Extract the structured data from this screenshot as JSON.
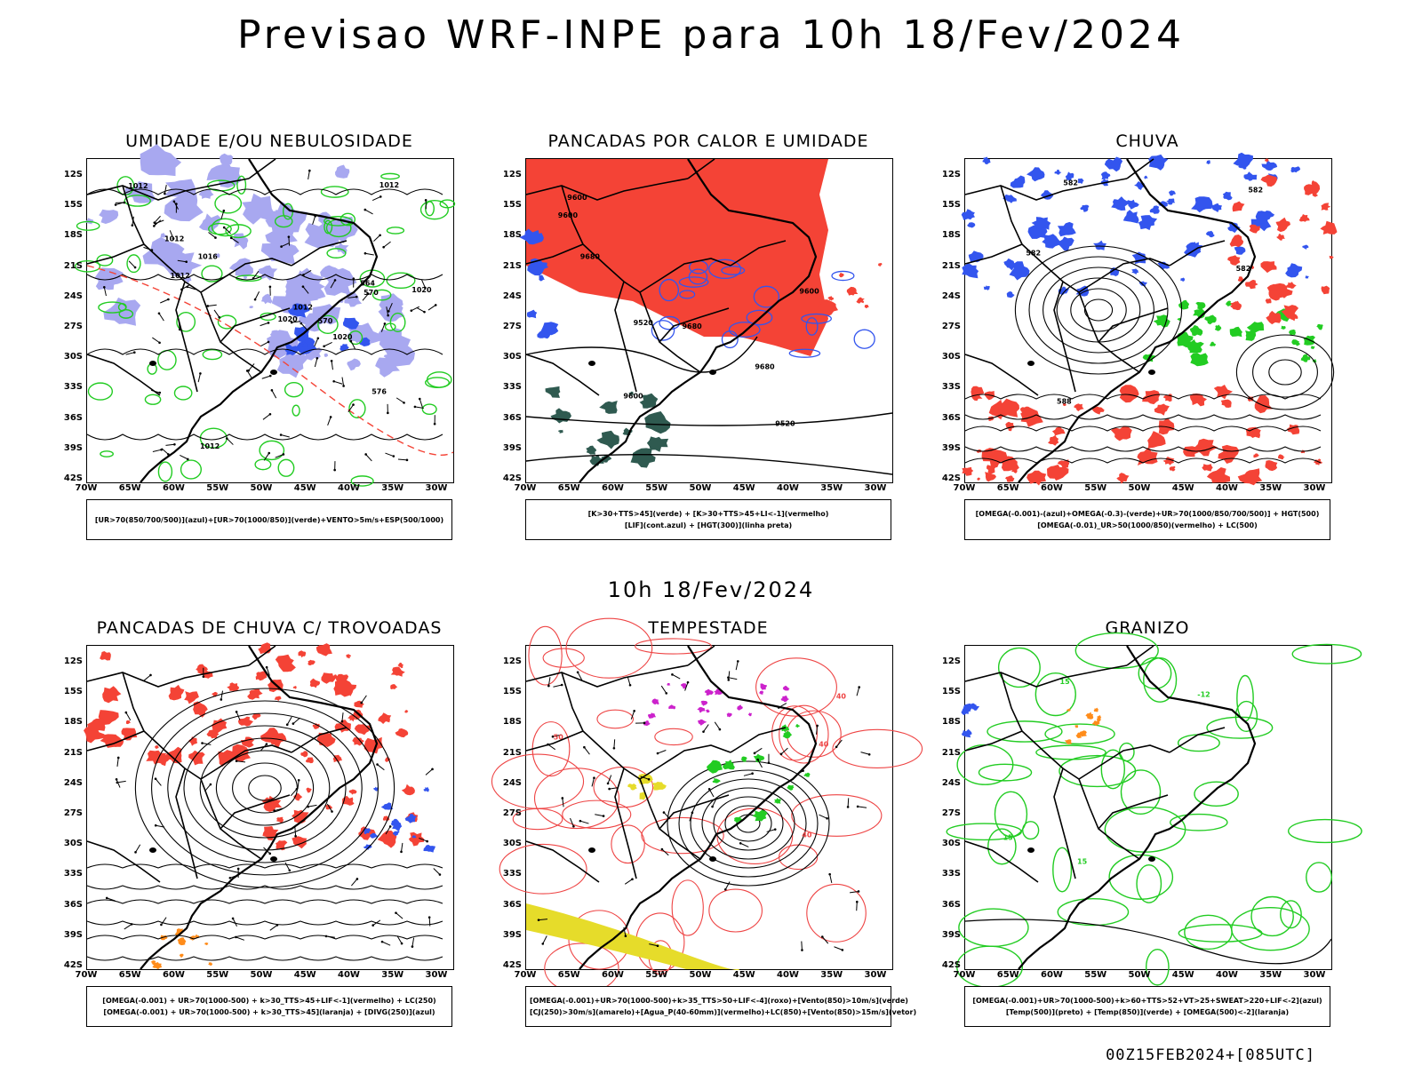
{
  "title": "Previsao WRF-INPE  para 10h 18/Fev/2024",
  "subtitle": "10h 18/Fev/2024",
  "footer": "00Z15FEB2024+[085UTC]",
  "axes": {
    "lat_labels": [
      "12S",
      "15S",
      "18S",
      "21S",
      "24S",
      "27S",
      "30S",
      "33S",
      "36S",
      "39S",
      "42S"
    ],
    "lon_labels": [
      "70W",
      "65W",
      "60W",
      "55W",
      "50W",
      "45W",
      "40W",
      "35W",
      "30W"
    ]
  },
  "colors": {
    "red": "#f44336",
    "blue": "#3355ee",
    "lavender": "#a8a8f0",
    "green": "#22cc22",
    "darkteal": "#2f5a50",
    "yellow": "#e6dc2a",
    "orange": "#ff8c1a",
    "magenta": "#cc22cc",
    "contour_red": "#ee4444",
    "black": "#000000"
  },
  "panels": [
    {
      "id": "umidade",
      "title": "UMIDADE E/OU NEBULOSIDADE",
      "legend": [
        "[UR>70(850/700/500)](azul)+[UR>70(1000/850)](verde)+VENTO>5m/s+ESP(500/1000)"
      ],
      "contour_labels": [
        "1012",
        "1012",
        "1012",
        "1012",
        "1012",
        "1012",
        "1016",
        "1020",
        "1020",
        "1020",
        "576",
        "570",
        "564",
        "570"
      ]
    },
    {
      "id": "pancadas-calor",
      "title": "PANCADAS POR CALOR E UMIDADE",
      "legend": [
        "[K>30+TTS>45](verde) + [K>30+TTS>45+LI<-1](vermelho)",
        "[LIF](cont.azul) + [HGT(300)](linha preta)"
      ],
      "contour_labels": [
        "9680",
        "9680",
        "9680",
        "9600",
        "9600",
        "9600",
        "9600",
        "9520",
        "9520"
      ]
    },
    {
      "id": "chuva",
      "title": "CHUVA",
      "legend": [
        "[OMEGA(-0.001)-(azul)+OMEGA(-0.3)-(verde)+UR>70(1000/850/700/500)] + HGT(500)",
        "[OMEGA(-0.01)_UR>50(1000/850)(vermelho) + LC(500)"
      ],
      "contour_labels": [
        "582",
        "582",
        "588",
        "582",
        "582"
      ]
    },
    {
      "id": "pancadas-trovoadas",
      "title": "PANCADAS DE CHUVA C/ TROVOADAS",
      "legend": [
        "[OMEGA(-0.001) + UR>70(1000-500) + k>30_TTS>45+LIF<-1](vermelho) + LC(250)",
        "[OMEGA(-0.001) + UR>70(1000-500) + k>30_TTS>45](laranja) + [DIVG(250)](azul)"
      ],
      "contour_labels": []
    },
    {
      "id": "tempestade",
      "title": "TEMPESTADE",
      "legend": [
        "[OMEGA(-0.001)+UR>70(1000-500)+k>35_TTS>50+LIF<-4](roxo)+[Vento(850)>10m/s](verde)",
        "[CJ(250)>30m/s](amarelo)+[Agua_P(40-60mm)](vermelho)+LC(850)+[Vento(850)>15m/s](vetor)"
      ],
      "contour_labels": [
        "40",
        "50",
        "40",
        "40"
      ]
    },
    {
      "id": "granizo",
      "title": "GRANIZO",
      "legend": [
        "[OMEGA(-0.001)+UR>70(1000-500)+k>60+TTS>52+VT>25+SWEAT>220+LIF<-2](azul)",
        "[Temp(500)](preto) + [Temp(850)](verde) + [OMEGA(500)<-2](laranja)"
      ],
      "contour_labels": [
        "-12",
        "15",
        "15",
        "15"
      ]
    }
  ]
}
